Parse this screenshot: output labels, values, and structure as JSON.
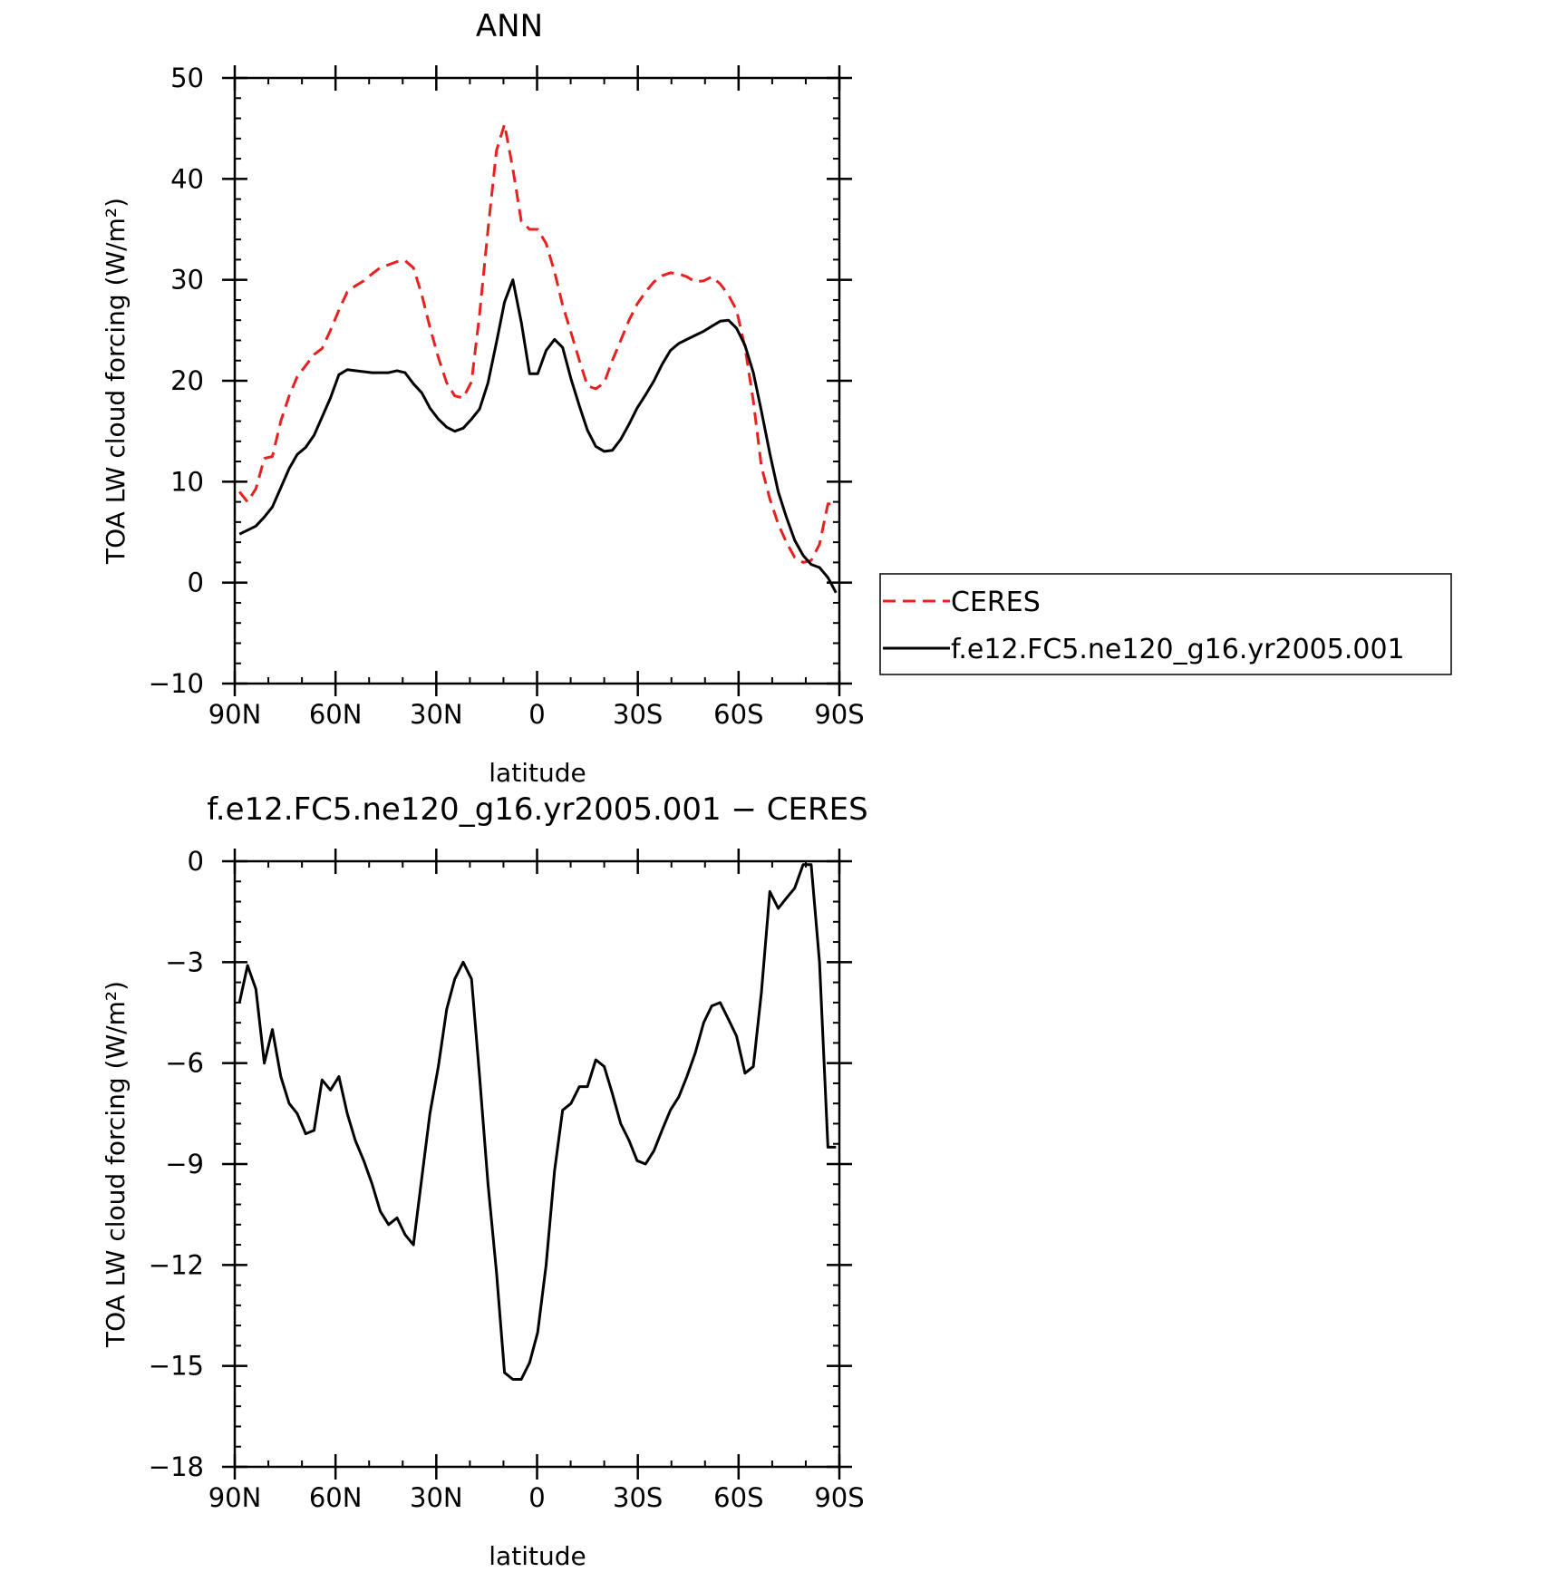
{
  "chart_data": [
    {
      "type": "line",
      "title": "ANN",
      "xlabel": "latitude",
      "ylabel": "TOA LW cloud forcing (W/m²)",
      "xlim": [
        90,
        -90
      ],
      "ylim": [
        -10,
        50
      ],
      "x_ticks": [
        90,
        60,
        30,
        0,
        -30,
        -60,
        -90
      ],
      "x_tick_labels": [
        "90N",
        "60N",
        "30N",
        "0",
        "30S",
        "60S",
        "90S"
      ],
      "y_ticks": [
        -10,
        0,
        10,
        20,
        30,
        40,
        50
      ],
      "y_tick_labels": [
        "−10",
        "0",
        "10",
        "20",
        "30",
        "40",
        "50"
      ],
      "legend": "right",
      "series": [
        {
          "name": "CERES",
          "color": "#e8211f",
          "dash": "dashed",
          "x": [
            88.6,
            86.2,
            83.7,
            81.2,
            78.8,
            76.3,
            73.8,
            71.4,
            68.9,
            66.4,
            64.0,
            61.5,
            59.0,
            56.5,
            54.1,
            51.6,
            49.1,
            46.7,
            44.2,
            41.7,
            39.3,
            36.8,
            34.3,
            31.9,
            29.4,
            26.9,
            24.5,
            22.0,
            19.5,
            17.1,
            14.6,
            12.1,
            9.7,
            7.2,
            4.7,
            2.2,
            -0.2,
            -2.7,
            -5.2,
            -7.6,
            -10.1,
            -12.6,
            -15.0,
            -17.5,
            -20.0,
            -22.4,
            -24.9,
            -27.4,
            -29.8,
            -32.3,
            -34.8,
            -37.2,
            -39.7,
            -42.2,
            -44.6,
            -47.1,
            -49.6,
            -52.0,
            -54.5,
            -57.0,
            -59.4,
            -61.9,
            -64.4,
            -66.8,
            -69.3,
            -71.8,
            -74.2,
            -76.7,
            -79.2,
            -81.6,
            -84.1,
            -86.6,
            -89.0
          ],
          "y": [
            9.0,
            8.0,
            9.3,
            12.3,
            12.5,
            16.0,
            18.5,
            20.4,
            21.5,
            22.6,
            23.2,
            25.0,
            27.0,
            28.8,
            29.4,
            29.9,
            30.6,
            31.2,
            31.5,
            31.8,
            31.9,
            31.2,
            28.5,
            25.3,
            22.3,
            19.8,
            18.5,
            18.3,
            19.9,
            26.6,
            35.0,
            42.8,
            45.4,
            41.0,
            35.8,
            35.0,
            35.0,
            33.6,
            30.8,
            27.5,
            24.8,
            22.0,
            19.5,
            19.2,
            19.8,
            22.0,
            24.0,
            26.0,
            27.6,
            28.8,
            29.8,
            30.4,
            30.7,
            30.6,
            30.3,
            29.8,
            29.9,
            30.3,
            29.6,
            28.5,
            27.0,
            23.3,
            18.0,
            11.5,
            8.3,
            5.8,
            4.0,
            2.5,
            2.0,
            2.2,
            3.8,
            7.8,
            7.8
          ]
        },
        {
          "name": "f.e12.FC5.ne120_g16.yr2005.001",
          "color": "#000000",
          "dash": "solid",
          "x": [
            88.6,
            86.2,
            83.7,
            81.2,
            78.8,
            76.3,
            73.8,
            71.4,
            68.9,
            66.4,
            64.0,
            61.5,
            59.0,
            56.5,
            54.1,
            51.6,
            49.1,
            46.7,
            44.2,
            41.7,
            39.3,
            36.8,
            34.3,
            31.9,
            29.4,
            26.9,
            24.5,
            22.0,
            19.5,
            17.1,
            14.6,
            12.1,
            9.7,
            7.2,
            4.7,
            2.2,
            -0.2,
            -2.7,
            -5.2,
            -7.6,
            -10.1,
            -12.6,
            -15.0,
            -17.5,
            -20.0,
            -22.4,
            -24.9,
            -27.4,
            -29.8,
            -32.3,
            -34.8,
            -37.2,
            -39.7,
            -42.2,
            -44.6,
            -47.1,
            -49.6,
            -52.0,
            -54.5,
            -57.0,
            -59.4,
            -61.9,
            -64.4,
            -66.8,
            -69.3,
            -71.8,
            -74.2,
            -76.7,
            -79.2,
            -81.6,
            -84.1,
            -86.6,
            -89.0
          ],
          "y": [
            4.8,
            5.2,
            5.6,
            6.5,
            7.5,
            9.4,
            11.3,
            12.7,
            13.4,
            14.6,
            16.4,
            18.3,
            20.6,
            21.1,
            21.0,
            20.9,
            20.8,
            20.8,
            20.8,
            21.0,
            20.8,
            19.7,
            18.8,
            17.3,
            16.2,
            15.4,
            15.0,
            15.3,
            16.2,
            17.2,
            19.8,
            23.8,
            27.8,
            30.0,
            25.8,
            20.7,
            20.7,
            23.0,
            24.1,
            23.3,
            20.2,
            17.5,
            15.1,
            13.5,
            13.0,
            13.1,
            14.2,
            15.7,
            17.3,
            18.6,
            20.0,
            21.6,
            23.0,
            23.7,
            24.1,
            24.5,
            24.9,
            25.4,
            25.9,
            26.0,
            25.2,
            23.5,
            20.8,
            17.0,
            12.8,
            9.0,
            6.5,
            4.2,
            2.7,
            1.8,
            1.5,
            0.5,
            -1.0
          ]
        }
      ]
    },
    {
      "type": "line",
      "title": "f.e12.FC5.ne120_g16.yr2005.001 − CERES",
      "xlabel": "latitude",
      "ylabel": "TOA LW cloud forcing (W/m²)",
      "xlim": [
        90,
        -90
      ],
      "ylim": [
        -18,
        0
      ],
      "x_ticks": [
        90,
        60,
        30,
        0,
        -30,
        -60,
        -90
      ],
      "x_tick_labels": [
        "90N",
        "60N",
        "30N",
        "0",
        "30S",
        "60S",
        "90S"
      ],
      "y_ticks": [
        -18,
        -15,
        -12,
        -9,
        -6,
        -3,
        0
      ],
      "y_tick_labels": [
        "−18",
        "−15",
        "−12",
        "−9",
        "−6",
        "−3",
        "0"
      ],
      "series": [
        {
          "color": "#000000",
          "dash": "solid",
          "x": [
            88.6,
            86.2,
            83.7,
            81.2,
            78.8,
            76.3,
            73.8,
            71.4,
            68.9,
            66.4,
            64.0,
            61.5,
            59.0,
            56.5,
            54.1,
            51.6,
            49.1,
            46.7,
            44.2,
            41.7,
            39.3,
            36.8,
            34.3,
            31.9,
            29.4,
            26.9,
            24.5,
            22.0,
            19.5,
            17.1,
            14.6,
            12.1,
            9.7,
            7.2,
            4.7,
            2.2,
            -0.2,
            -2.7,
            -5.2,
            -7.6,
            -10.1,
            -12.6,
            -15.0,
            -17.5,
            -20.0,
            -22.4,
            -24.9,
            -27.4,
            -29.8,
            -32.3,
            -34.8,
            -37.2,
            -39.7,
            -42.2,
            -44.6,
            -47.1,
            -49.6,
            -52.0,
            -54.5,
            -57.0,
            -59.4,
            -61.9,
            -64.4,
            -66.8,
            -69.3,
            -71.8,
            -74.2,
            -76.7,
            -79.2,
            -81.6,
            -84.1,
            -86.6,
            -89.0
          ],
          "y": [
            -4.2,
            -3.1,
            -3.8,
            -6.0,
            -5.0,
            -6.4,
            -7.2,
            -7.5,
            -8.1,
            -8.0,
            -6.5,
            -6.8,
            -6.4,
            -7.5,
            -8.3,
            -8.9,
            -9.6,
            -10.4,
            -10.8,
            -10.6,
            -11.1,
            -11.4,
            -9.4,
            -7.5,
            -6.1,
            -4.4,
            -3.5,
            -3.0,
            -3.5,
            -6.4,
            -9.6,
            -12.2,
            -15.2,
            -15.4,
            -15.4,
            -14.9,
            -14.0,
            -12.0,
            -9.2,
            -7.4,
            -7.2,
            -6.7,
            -6.7,
            -5.9,
            -6.1,
            -6.9,
            -7.8,
            -8.3,
            -8.9,
            -9.0,
            -8.6,
            -8.0,
            -7.4,
            -7.0,
            -6.4,
            -5.7,
            -4.8,
            -4.3,
            -4.2,
            -4.7,
            -5.2,
            -6.3,
            -6.1,
            -3.9,
            -0.9,
            -1.4,
            -1.1,
            -0.8,
            -0.1,
            -0.1,
            -3.0,
            -8.5,
            -8.5
          ]
        }
      ]
    }
  ]
}
